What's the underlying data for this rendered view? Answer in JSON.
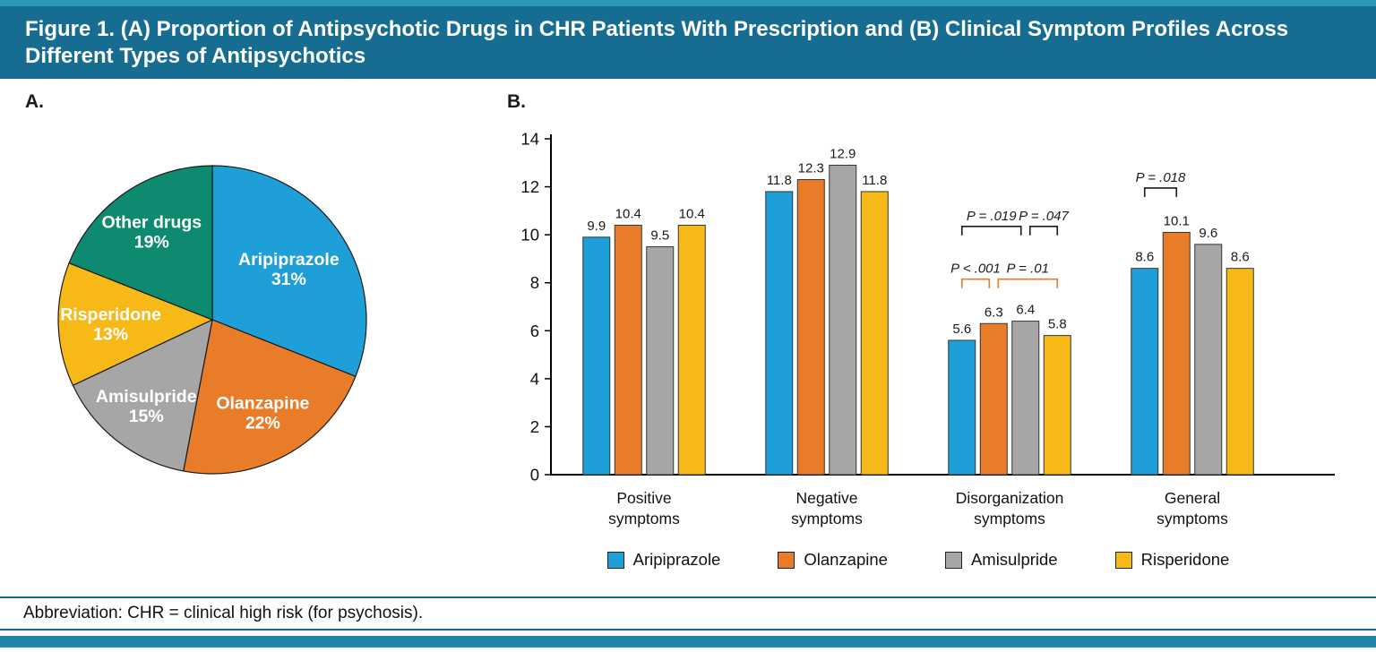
{
  "figure": {
    "title": "Figure 1. (A) Proportion of Antipsychotic Drugs in CHR Patients With Prescription and (B) Clinical Symptom Profiles Across Different Types of Antipsychotics",
    "panel_a_label": "A.",
    "panel_b_label": "B.",
    "footer": "Abbreviation: CHR = clinical high risk (for psychosis)."
  },
  "colors": {
    "header_bg": "#176D91",
    "top_strip": "#2E97B7",
    "bottom_band": "#2184A9",
    "divider": "#17688A",
    "aripiprazole": "#1F9FD8",
    "olanzapine": "#E87C28",
    "amisulpride": "#A6A6A6",
    "risperidone": "#F6B917",
    "other_drugs": "#0D8A6F",
    "annotation_black": "#1a1a1a",
    "annotation_orange": "#E87C28"
  },
  "chart_data": [
    {
      "type": "pie",
      "panel": "A",
      "start_angle_deg": -90,
      "direction": "clockwise",
      "slices": [
        {
          "label": "Aripiprazole",
          "value": 31,
          "pct_label": "31%",
          "color_key": "aripiprazole",
          "label_r": 0.6
        },
        {
          "label": "Olanzapine",
          "value": 22,
          "pct_label": "22%",
          "color_key": "olanzapine",
          "label_r": 0.68
        },
        {
          "label": "Amisulpride",
          "value": 15,
          "pct_label": "15%",
          "color_key": "amisulpride",
          "label_r": 0.7
        },
        {
          "label": "Risperidone",
          "value": 13,
          "pct_label": "13%",
          "color_key": "risperidone",
          "label_r": 0.66
        },
        {
          "label": "Other drugs",
          "value": 19,
          "pct_label": "19%",
          "color_key": "other_drugs",
          "label_r": 0.7
        }
      ]
    },
    {
      "type": "bar",
      "panel": "B",
      "ylim": [
        0,
        14
      ],
      "yticks": [
        0,
        2,
        4,
        6,
        8,
        10,
        12,
        14
      ],
      "grid": false,
      "legend_position": "bottom",
      "categories": [
        {
          "line1": "Positive",
          "line2": "symptoms"
        },
        {
          "line1": "Negative",
          "line2": "symptoms"
        },
        {
          "line1": "Disorganization",
          "line2": "symptoms"
        },
        {
          "line1": "General",
          "line2": "symptoms"
        }
      ],
      "series": [
        {
          "name": "Aripiprazole",
          "color_key": "aripiprazole",
          "values": [
            9.9,
            11.8,
            5.6,
            8.6
          ]
        },
        {
          "name": "Olanzapine",
          "color_key": "olanzapine",
          "values": [
            10.4,
            12.3,
            6.3,
            10.1
          ]
        },
        {
          "name": "Amisulpride",
          "color_key": "amisulpride",
          "values": [
            9.5,
            12.9,
            6.4,
            9.6
          ]
        },
        {
          "name": "Risperidone",
          "color_key": "risperidone",
          "values": [
            10.4,
            11.8,
            5.8,
            8.6
          ]
        }
      ],
      "annotations": [
        {
          "group": 2,
          "from_series": 0,
          "to_series": 2,
          "text": "P = .019",
          "y": 10.35,
          "color_key": "annotation_black",
          "dx1": 0,
          "dx2": -5
        },
        {
          "group": 2,
          "from_series": 2,
          "to_series": 3,
          "text": "P = .047",
          "y": 10.35,
          "color_key": "annotation_black",
          "dx1": 5,
          "dx2": 0
        },
        {
          "group": 2,
          "from_series": 0,
          "to_series": 1,
          "text": "P < .001",
          "y": 8.15,
          "color_key": "annotation_orange",
          "dx1": 0,
          "dx2": -5
        },
        {
          "group": 2,
          "from_series": 1,
          "to_series": 3,
          "text": "P = .01",
          "y": 8.15,
          "color_key": "annotation_orange",
          "dx1": 5,
          "dx2": 0
        },
        {
          "group": 3,
          "from_series": 0,
          "to_series": 1,
          "text": "P = .018",
          "y": 11.95,
          "color_key": "annotation_black",
          "dx1": 0,
          "dx2": 0
        }
      ]
    }
  ],
  "legend": {
    "items": [
      {
        "label": "Aripiprazole",
        "color_key": "aripiprazole"
      },
      {
        "label": "Olanzapine",
        "color_key": "olanzapine"
      },
      {
        "label": "Amisulpride",
        "color_key": "amisulpride"
      },
      {
        "label": "Risperidone",
        "color_key": "risperidone"
      }
    ]
  }
}
